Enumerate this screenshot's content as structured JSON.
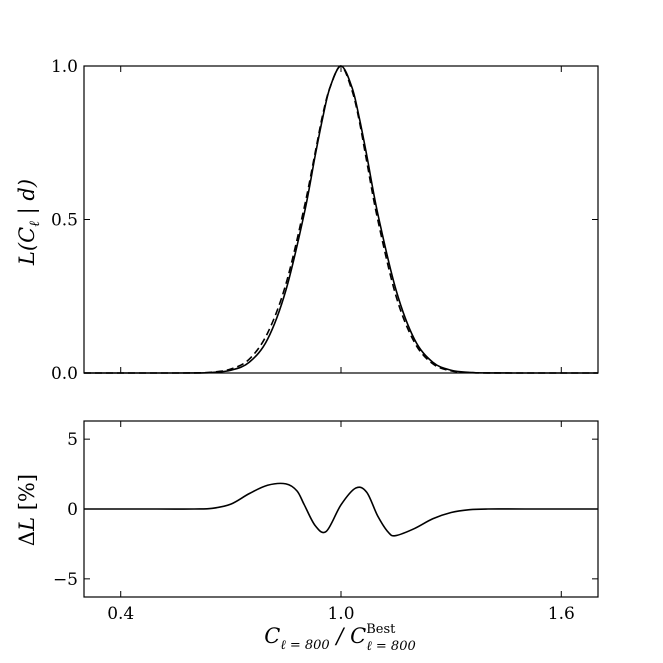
{
  "chart_data": [
    {
      "type": "line",
      "panel": "top",
      "ylabel": "L(C_ℓ | d)",
      "xlim": [
        0.3,
        1.7
      ],
      "ylim": [
        0.0,
        1.0
      ],
      "xticks": [
        0.4,
        1.0,
        1.6
      ],
      "yticks": [
        "0.0",
        "0.5",
        "1.0"
      ],
      "grid": false,
      "series": [
        {
          "style": "solid",
          "x": [
            0.3,
            0.4,
            0.5,
            0.6,
            0.65,
            0.7,
            0.75,
            0.8,
            0.85,
            0.9,
            0.93,
            0.95,
            0.97,
            1.0,
            1.03,
            1.05,
            1.07,
            1.1,
            1.15,
            1.2,
            1.25,
            1.3,
            1.35,
            1.4,
            1.5,
            1.6,
            1.7
          ],
          "values": [
            0.0,
            0.0,
            0.0,
            0.0002,
            0.002,
            0.009,
            0.035,
            0.11,
            0.27,
            0.52,
            0.71,
            0.83,
            0.93,
            1.0,
            0.93,
            0.83,
            0.71,
            0.52,
            0.27,
            0.11,
            0.035,
            0.009,
            0.002,
            0.0003,
            0.0,
            0.0,
            0.0
          ]
        },
        {
          "style": "dashed",
          "x": [
            0.3,
            0.4,
            0.5,
            0.6,
            0.65,
            0.7,
            0.75,
            0.8,
            0.85,
            0.9,
            0.93,
            0.95,
            0.97,
            1.0,
            1.03,
            1.05,
            1.07,
            1.1,
            1.15,
            1.2,
            1.25,
            1.3,
            1.35,
            1.4,
            1.5,
            1.6,
            1.7
          ],
          "values": [
            0.0,
            0.0,
            0.0,
            0.0003,
            0.003,
            0.013,
            0.045,
            0.13,
            0.29,
            0.54,
            0.72,
            0.84,
            0.93,
            1.0,
            0.92,
            0.82,
            0.69,
            0.5,
            0.25,
            0.1,
            0.03,
            0.007,
            0.0015,
            0.0002,
            0.0,
            0.0,
            0.0
          ]
        }
      ]
    },
    {
      "type": "line",
      "panel": "bottom",
      "xlabel": "C_{ℓ=800} / C^Best_{ℓ=800}",
      "ylabel": "ΔL [%]",
      "xlim": [
        0.3,
        1.7
      ],
      "ylim": [
        -6.3,
        6.3
      ],
      "xticks": [
        "0.4",
        "1.0",
        "1.6"
      ],
      "yticks": [
        "−5",
        "0",
        "5"
      ],
      "grid": false,
      "series": [
        {
          "style": "solid",
          "x": [
            0.3,
            0.5,
            0.6,
            0.65,
            0.7,
            0.75,
            0.8,
            0.85,
            0.88,
            0.9,
            0.93,
            0.96,
            1.0,
            1.04,
            1.07,
            1.1,
            1.13,
            1.15,
            1.2,
            1.25,
            1.3,
            1.35,
            1.4,
            1.5,
            1.7
          ],
          "values": [
            0.0,
            0.0,
            0.0,
            0.05,
            0.35,
            1.1,
            1.7,
            1.8,
            1.3,
            0.3,
            -1.2,
            -1.6,
            0.3,
            1.5,
            1.2,
            -0.5,
            -1.7,
            -1.9,
            -1.4,
            -0.7,
            -0.25,
            -0.05,
            0.0,
            0.0,
            0.0
          ]
        }
      ]
    }
  ]
}
